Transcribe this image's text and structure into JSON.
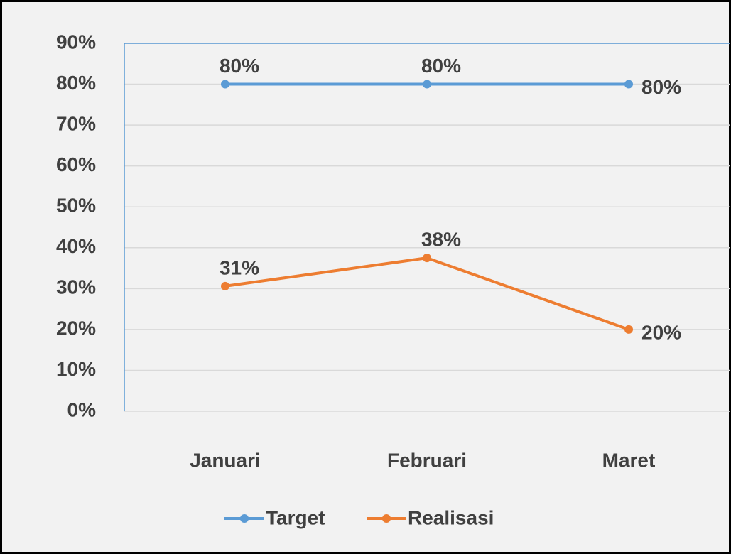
{
  "chart_data": {
    "type": "line",
    "categories": [
      "Januari",
      "Februari",
      "Maret"
    ],
    "series": [
      {
        "name": "Target",
        "color": "#5b9bd5",
        "values": [
          80,
          80,
          80
        ],
        "value_labels": [
          "80%",
          "80%",
          "80%"
        ]
      },
      {
        "name": "Realisasi",
        "color": "#ed7d31",
        "values": [
          30.6,
          37.5,
          20
        ],
        "value_labels": [
          "31%",
          "38%",
          "20%"
        ]
      }
    ],
    "ylim": [
      0,
      90
    ],
    "yticks": [
      {
        "value": 0,
        "label": "0%"
      },
      {
        "value": 10,
        "label": "10%"
      },
      {
        "value": 20,
        "label": "20%"
      },
      {
        "value": 30,
        "label": "30%"
      },
      {
        "value": 40,
        "label": "40%"
      },
      {
        "value": 50,
        "label": "50%"
      },
      {
        "value": 60,
        "label": "60%"
      },
      {
        "value": 70,
        "label": "70%"
      },
      {
        "value": 80,
        "label": "80%"
      },
      {
        "value": 90,
        "label": "90%"
      }
    ],
    "grid": true,
    "legend": "bottom"
  }
}
